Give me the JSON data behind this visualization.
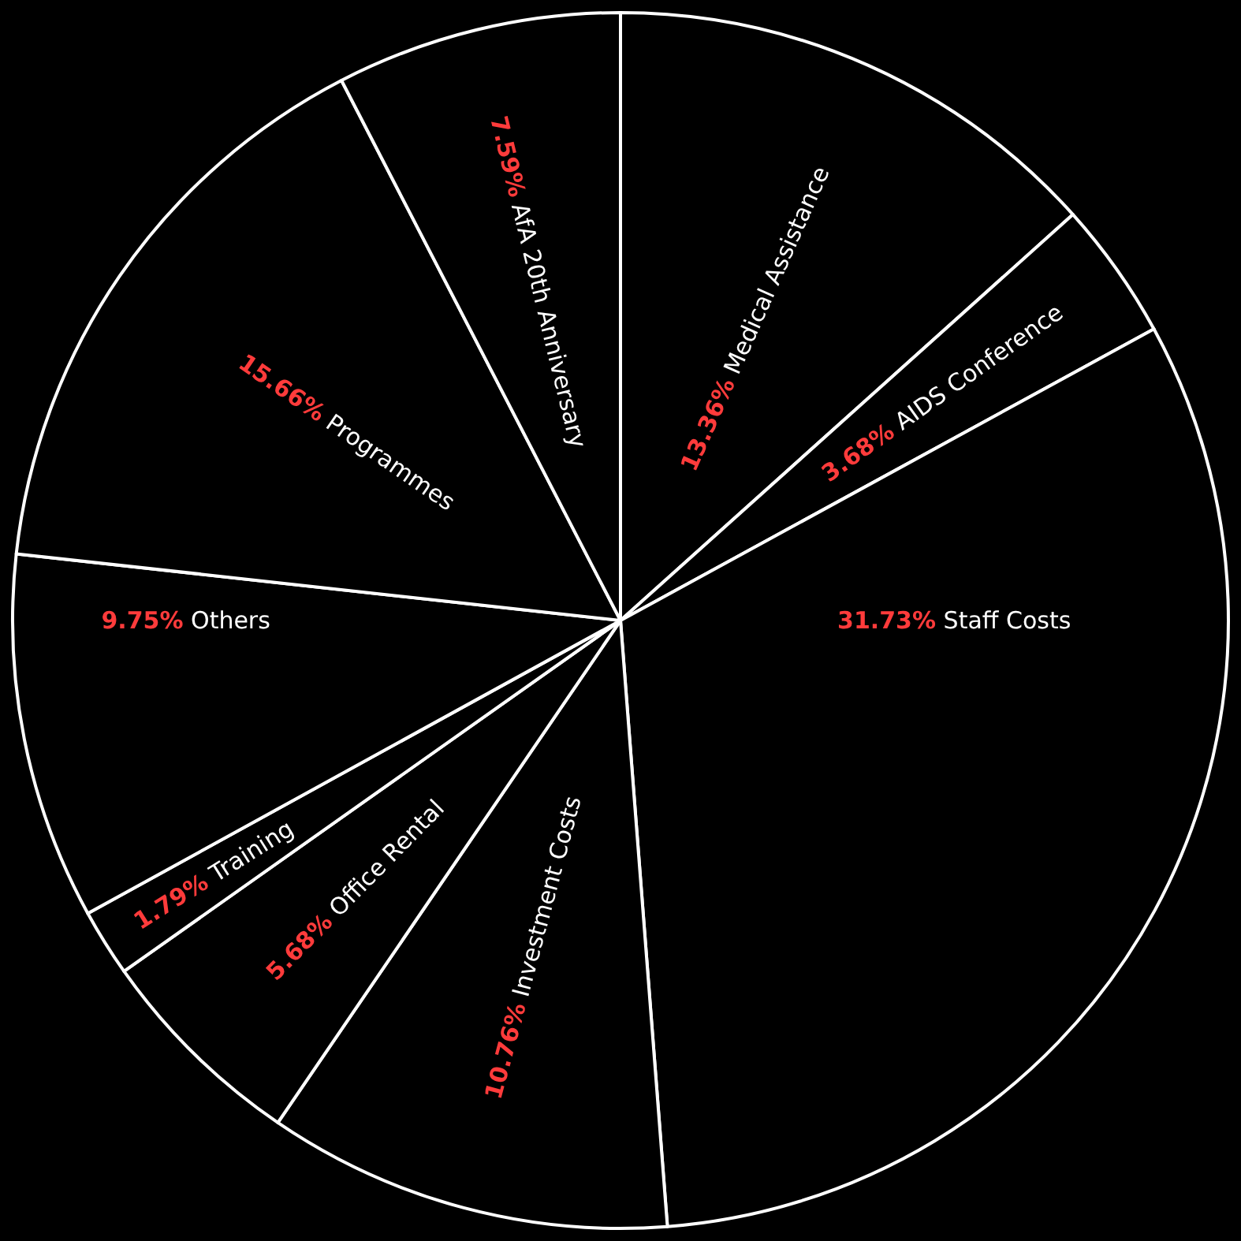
{
  "chart_data": {
    "type": "pie",
    "categories": [
      "Medical Assistance",
      "AIDS Conference",
      "Staff Costs",
      "Investment Costs",
      "Office Rental",
      "Training",
      "Others",
      "Programmes",
      "AfA 20th Anniversary"
    ],
    "values": [
      13.36,
      3.68,
      31.73,
      10.76,
      5.68,
      1.79,
      9.75,
      15.66,
      7.59
    ],
    "value_labels": [
      "13.36%",
      "3.68%",
      "31.73%",
      "10.76%",
      "5.68%",
      "1.79%",
      "9.75%",
      "15.66%",
      "7.59%"
    ],
    "colors": [
      "#000000",
      "#000000",
      "#000000",
      "#000000",
      "#000000",
      "#000000",
      "#000000",
      "#000000",
      "#000000"
    ],
    "legend": false
  }
}
